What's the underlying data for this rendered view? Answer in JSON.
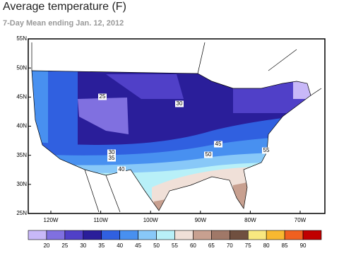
{
  "header": {
    "title": "Average temperature (F)",
    "subtitle": "7-Day Mean ending Jan. 12, 2012"
  },
  "map": {
    "lat_labels": [
      "55N",
      "50N",
      "45N",
      "40N",
      "35N",
      "30N",
      "25N"
    ],
    "lon_labels": [
      "120W",
      "110W",
      "100W",
      "90W",
      "80W",
      "70W"
    ],
    "contour_labels": [
      "25",
      "30",
      "30",
      "35",
      "40",
      "45",
      "50",
      "55"
    ]
  },
  "legend": {
    "colors": [
      "#c8b8f8",
      "#8070e0",
      "#5040c8",
      "#2a1e9a",
      "#3060e0",
      "#4890f0",
      "#88c8f8",
      "#b8f0f8",
      "#f0e0d8",
      "#c8a090",
      "#a07868",
      "#705040",
      "#f8e880",
      "#f8b830",
      "#f06020",
      "#c00000"
    ],
    "labels": [
      "20",
      "25",
      "30",
      "35",
      "40",
      "45",
      "50",
      "55",
      "60",
      "65",
      "70",
      "75",
      "80",
      "85",
      "90"
    ]
  }
}
